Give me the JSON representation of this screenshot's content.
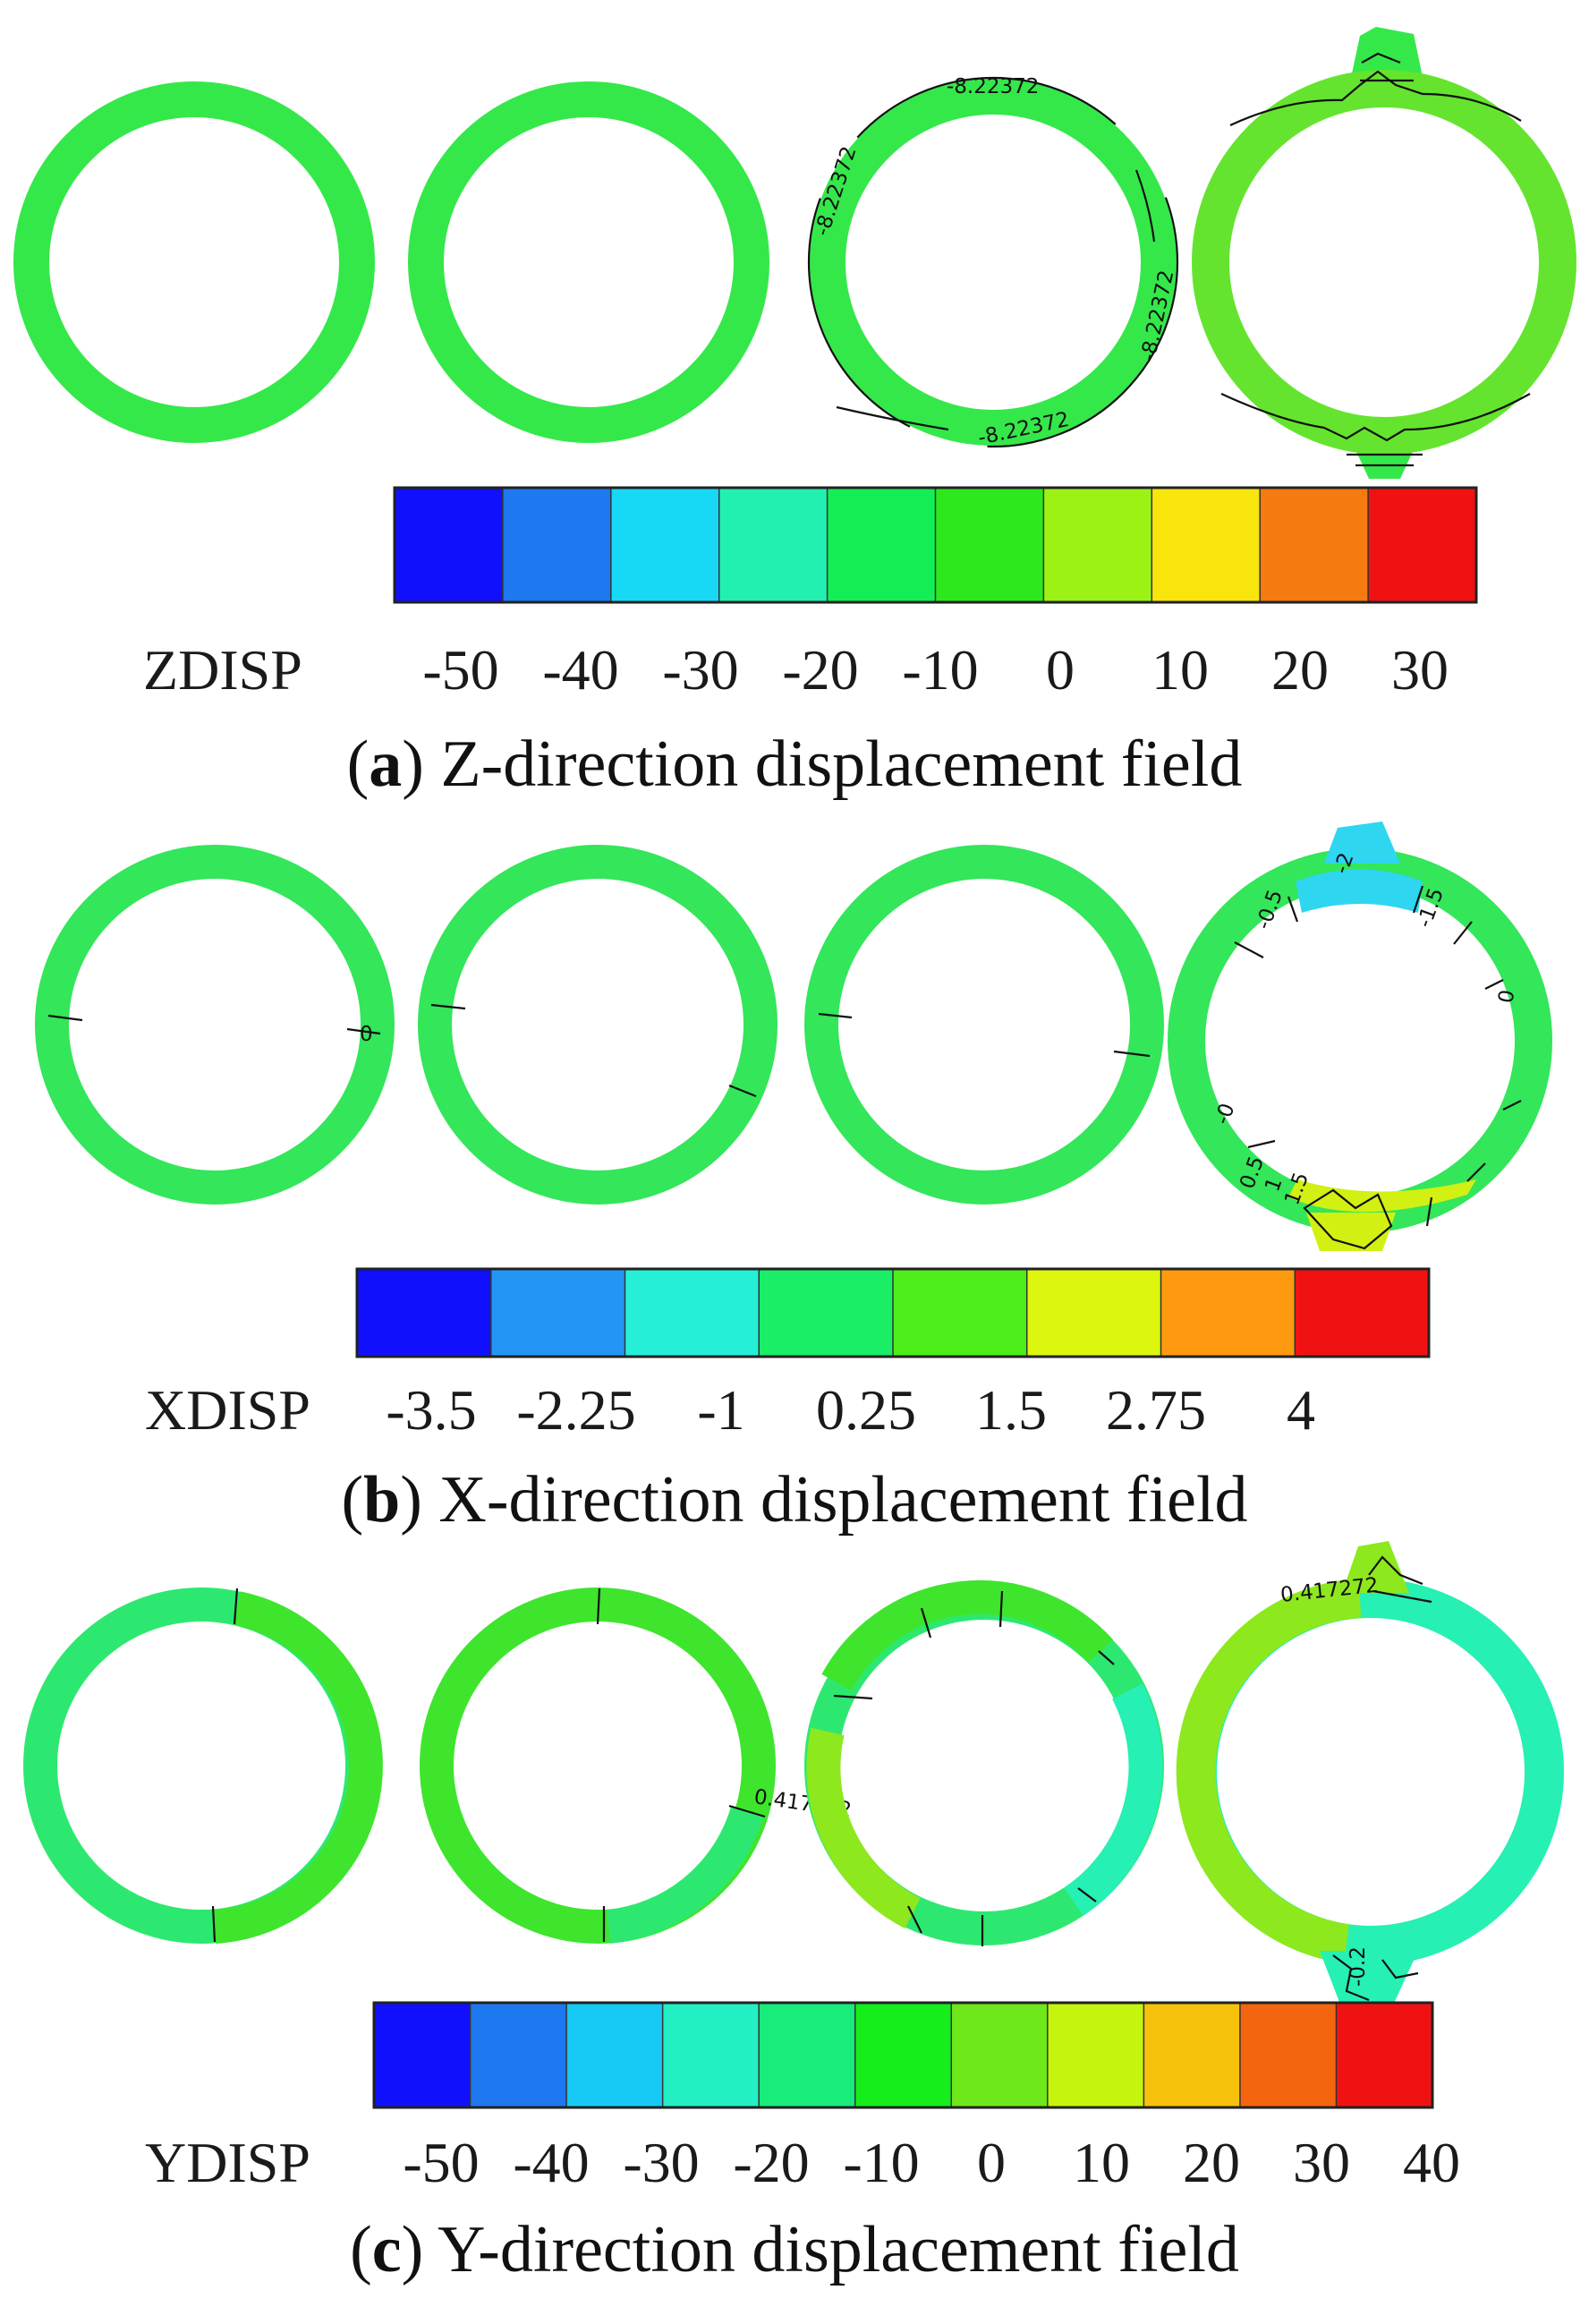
{
  "colors": {
    "zdisp_legend": [
      "#1010ff",
      "#1e78f0",
      "#17d9f5",
      "#22f0b0",
      "#13ee55",
      "#2ee81e",
      "#9cf214",
      "#f7e50c",
      "#f57a10",
      "#f01212"
    ],
    "xdisp_legend": [
      "#1010ff",
      "#2396f5",
      "#25f0d7",
      "#19ee66",
      "#4ded1a",
      "#dcf70d",
      "#ff9a10",
      "#f01212"
    ],
    "ydisp_legend": [
      "#1010ff",
      "#1e78f0",
      "#17c9f5",
      "#22f0c4",
      "#18ec7a",
      "#15ee1a",
      "#6ee81a",
      "#c5f50c",
      "#f7c20c",
      "#f56510",
      "#f01212"
    ],
    "ring_z": "#34e84a",
    "ring_z_warm": "#64e42e",
    "ring_x": "#33e65a",
    "ring_x_cool": "#2ed6f0",
    "ring_x_warm": "#d2f012",
    "ring_y": "#2de870",
    "ring_y_green": "#3ee52c",
    "ring_y_aqua": "#26f0b4",
    "ring_y_warm": "#8de81e"
  },
  "panel_a": {
    "contour_label_1": "-8.22372",
    "contour_label_2": "-8.22372",
    "contour_label_3": "-8.22372",
    "contour_label_4": "-8.22372",
    "legend": {
      "title": "ZDISP",
      "ticks": [
        "-50",
        "-40",
        "-30",
        "-20",
        "-10",
        "0",
        "10",
        "20",
        "30"
      ]
    },
    "caption_letter": "a",
    "caption_text": "Z-direction displacement field"
  },
  "panel_b": {
    "contour_label_zero_1": "0",
    "contour_labels_ring4": [
      "-0.5",
      "-2",
      "-1.5",
      "0",
      "-0",
      "0.5",
      "1",
      "1.5"
    ],
    "legend": {
      "title": "XDISP",
      "ticks": [
        "-3.5",
        "-2.25",
        "-1",
        "0.25",
        "1.5",
        "2.75",
        "4"
      ]
    },
    "caption_letter": "b",
    "caption_text": "X-direction displacement field"
  },
  "panel_c": {
    "contour_label_1": "0.417272",
    "contour_label_2": "0.417272",
    "contour_label_3": "-0.2",
    "legend": {
      "title": "YDISP",
      "ticks": [
        "-50",
        "-40",
        "-30",
        "-20",
        "-10",
        "0",
        "10",
        "20",
        "30",
        "40"
      ]
    },
    "caption_letter": "c",
    "caption_text": "Y-direction displacement field"
  }
}
